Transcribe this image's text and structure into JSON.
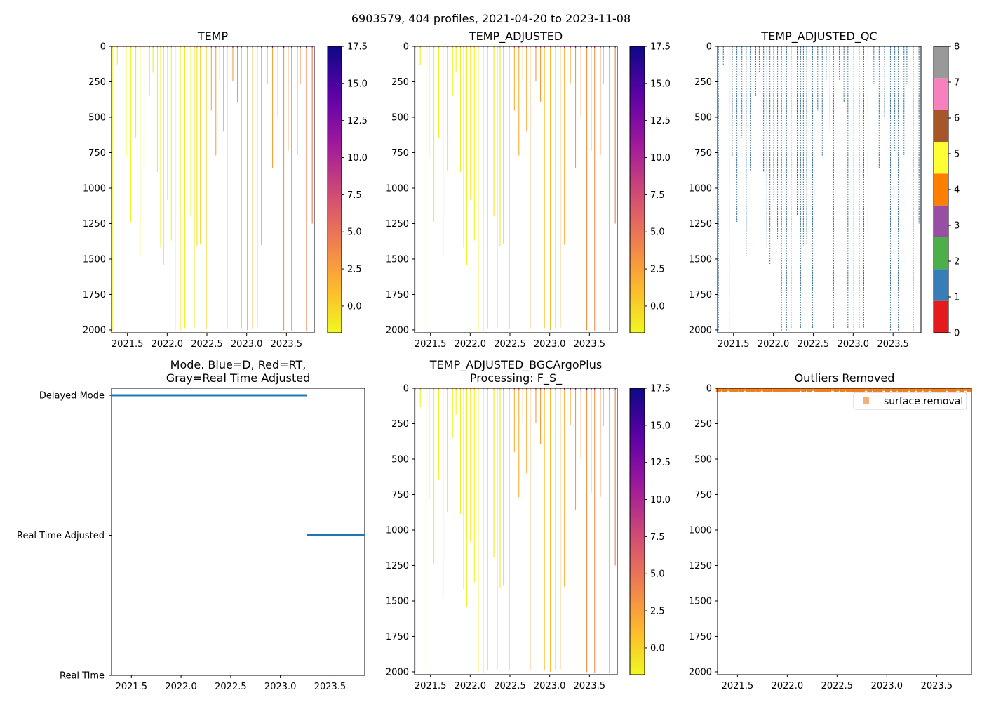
{
  "suptitle": "6903579, 404 profiles, 2021-04-20 to 2023-11-08",
  "colors": {
    "axis": "#000000",
    "qc_line": "#3b6f97",
    "mode_line": "#1f77b4",
    "outlier": "#f08020",
    "legend_marker": "#f5b07a",
    "plasma_stops": [
      "#f0f921",
      "#fdb42f",
      "#ed7953",
      "#cc4778",
      "#9c179e",
      "#5c01a6",
      "#0d0887"
    ],
    "qc_colors": [
      "#e41a1c",
      "#377eb8",
      "#4daf4a",
      "#984ea3",
      "#ff7f00",
      "#ffff33",
      "#a65628",
      "#f781bf",
      "#999999"
    ]
  },
  "chart_data": [
    {
      "id": "temp",
      "type": "scatter",
      "title": "TEMP",
      "xlim": [
        2021.3,
        2023.85
      ],
      "xticks": [
        "2021.5",
        "2022.0",
        "2022.5",
        "2023.0",
        "2023.5"
      ],
      "ylim": [
        2020,
        0
      ],
      "yticks": [
        "0",
        "250",
        "500",
        "750",
        "1000",
        "1250",
        "1500",
        "1750",
        "2000"
      ],
      "colorbar": {
        "vmin": -1.8,
        "vmax": 17.5,
        "ticks": [
          "0.0",
          "2.5",
          "5.0",
          "7.5",
          "10.0",
          "12.5",
          "15.0",
          "17.5"
        ]
      },
      "seed": 11
    },
    {
      "id": "temp_adj",
      "type": "scatter",
      "title": "TEMP_ADJUSTED",
      "xlim": [
        2021.3,
        2023.85
      ],
      "xticks": [
        "2021.5",
        "2022.0",
        "2022.5",
        "2023.0",
        "2023.5"
      ],
      "ylim": [
        2020,
        0
      ],
      "yticks": [
        "0",
        "250",
        "500",
        "750",
        "1000",
        "1250",
        "1500",
        "1750",
        "2000"
      ],
      "colorbar": {
        "vmin": -1.8,
        "vmax": 17.5,
        "ticks": [
          "0.0",
          "2.5",
          "5.0",
          "7.5",
          "10.0",
          "12.5",
          "15.0",
          "17.5"
        ]
      },
      "seed": 23
    },
    {
      "id": "temp_qc",
      "type": "scatter",
      "title": "TEMP_ADJUSTED_QC",
      "xlim": [
        2021.3,
        2023.85
      ],
      "xticks": [
        "2021.5",
        "2022.0",
        "2022.5",
        "2023.0",
        "2023.5"
      ],
      "ylim": [
        2020,
        0
      ],
      "yticks": [
        "0",
        "250",
        "500",
        "750",
        "1000",
        "1250",
        "1500",
        "1750",
        "2000"
      ],
      "colorbar": {
        "categorical": true,
        "vmin": 0,
        "vmax": 8,
        "ticks": [
          "0",
          "1",
          "2",
          "3",
          "4",
          "5",
          "6",
          "7",
          "8"
        ]
      },
      "seed": 37
    },
    {
      "id": "mode",
      "type": "line",
      "title_lines": [
        "Mode. Blue=D, Red=RT,",
        "Gray=Real Time Adjusted"
      ],
      "xlim": [
        2021.3,
        2023.85
      ],
      "xticks": [
        "2021.5",
        "2022.0",
        "2022.5",
        "2023.0",
        "2023.5"
      ],
      "ycats": [
        "Delayed Mode",
        "Real Time Adjusted",
        "Real Time"
      ],
      "segments": [
        {
          "x0": 2021.3,
          "x1": 2023.27,
          "level": "Delayed Mode"
        },
        {
          "x0": 2023.27,
          "x1": 2023.85,
          "level": "Real Time Adjusted"
        }
      ]
    },
    {
      "id": "bgc",
      "type": "scatter",
      "title_lines": [
        "TEMP_ADJUSTED_BGCArgoPlus",
        "Processing: F_S_"
      ],
      "xlim": [
        2021.3,
        2023.85
      ],
      "xticks": [
        "2021.5",
        "2022.0",
        "2022.5",
        "2023.0",
        "2023.5"
      ],
      "ylim": [
        2020,
        0
      ],
      "yticks": [
        "0",
        "250",
        "500",
        "750",
        "1000",
        "1250",
        "1500",
        "1750",
        "2000"
      ],
      "colorbar": {
        "vmin": -1.8,
        "vmax": 17.5,
        "ticks": [
          "0.0",
          "2.5",
          "5.0",
          "7.5",
          "10.0",
          "12.5",
          "15.0",
          "17.5"
        ]
      },
      "seed": 23
    },
    {
      "id": "outliers",
      "type": "scatter",
      "title": "Outliers Removed",
      "xlim": [
        2021.3,
        2023.85
      ],
      "xticks": [
        "2021.5",
        "2022.0",
        "2022.5",
        "2023.0",
        "2023.5"
      ],
      "ylim": [
        2020,
        0
      ],
      "yticks": [
        "0",
        "250",
        "500",
        "750",
        "1000",
        "1250",
        "1500",
        "1750",
        "2000"
      ],
      "legend": [
        "surface removal"
      ],
      "outlier_depth_range": [
        0,
        15
      ]
    }
  ]
}
